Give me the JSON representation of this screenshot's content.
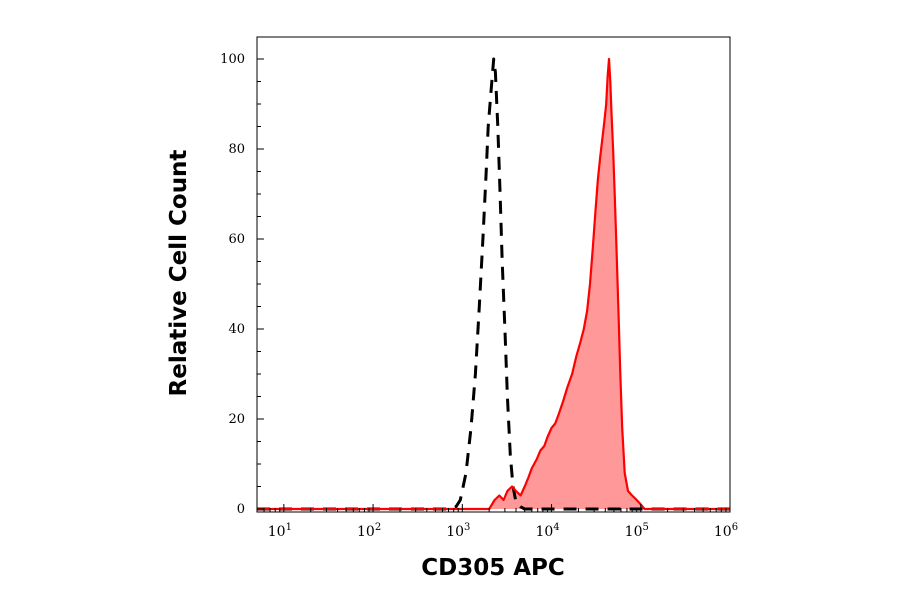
{
  "chart_data": {
    "type": "area",
    "xlabel": "CD305 APC",
    "ylabel": "Relative Cell Count",
    "x_scale": "log",
    "xlim": [
      5,
      1000000
    ],
    "ylim": [
      0,
      100
    ],
    "y_ticks": [
      0,
      20,
      40,
      60,
      80,
      100
    ],
    "x_ticks": [
      {
        "value": 10,
        "base": "10",
        "exp": "1"
      },
      {
        "value": 100,
        "base": "10",
        "exp": "2"
      },
      {
        "value": 1000,
        "base": "10",
        "exp": "3"
      },
      {
        "value": 10000,
        "base": "10",
        "exp": "4"
      },
      {
        "value": 100000,
        "base": "10",
        "exp": "5"
      },
      {
        "value": 1000000,
        "base": "10",
        "exp": "6"
      }
    ],
    "grid": false,
    "series": [
      {
        "style": "dashed",
        "color": "#000000",
        "fill": false,
        "points": [
          [
            5,
            0
          ],
          [
            700,
            0
          ],
          [
            850,
            0.5
          ],
          [
            950,
            2
          ],
          [
            1100,
            8
          ],
          [
            1250,
            18
          ],
          [
            1400,
            30
          ],
          [
            1550,
            45
          ],
          [
            1700,
            60
          ],
          [
            1850,
            75
          ],
          [
            1950,
            85
          ],
          [
            2100,
            93
          ],
          [
            2250,
            100
          ],
          [
            2350,
            97
          ],
          [
            2500,
            85
          ],
          [
            2650,
            70
          ],
          [
            2800,
            55
          ],
          [
            3000,
            40
          ],
          [
            3200,
            25
          ],
          [
            3450,
            12
          ],
          [
            3700,
            5
          ],
          [
            4000,
            1.5
          ],
          [
            4500,
            0.5
          ],
          [
            5000,
            0
          ],
          [
            1000000,
            0
          ]
        ]
      },
      {
        "style": "solid",
        "color": "#ff0000",
        "fill": true,
        "fill_color": "#ff9999",
        "points": [
          [
            5,
            0
          ],
          [
            2000,
            0
          ],
          [
            2300,
            2
          ],
          [
            2600,
            3
          ],
          [
            2900,
            2
          ],
          [
            3200,
            4
          ],
          [
            3600,
            5
          ],
          [
            4000,
            4
          ],
          [
            4500,
            3
          ],
          [
            5000,
            5
          ],
          [
            5500,
            7
          ],
          [
            6000,
            9
          ],
          [
            6800,
            11
          ],
          [
            7500,
            13
          ],
          [
            8300,
            14
          ],
          [
            9000,
            16
          ],
          [
            10000,
            18
          ],
          [
            11000,
            19
          ],
          [
            12000,
            21
          ],
          [
            13500,
            24
          ],
          [
            15000,
            27
          ],
          [
            17000,
            30
          ],
          [
            19000,
            34
          ],
          [
            21000,
            37
          ],
          [
            23000,
            40
          ],
          [
            25000,
            44
          ],
          [
            27000,
            50
          ],
          [
            29000,
            58
          ],
          [
            31000,
            66
          ],
          [
            33000,
            73
          ],
          [
            35000,
            78
          ],
          [
            37000,
            82
          ],
          [
            39000,
            86
          ],
          [
            41000,
            90
          ],
          [
            42500,
            96
          ],
          [
            44000,
            100
          ],
          [
            45500,
            95
          ],
          [
            47000,
            88
          ],
          [
            49000,
            80
          ],
          [
            51000,
            70
          ],
          [
            53000,
            60
          ],
          [
            55000,
            50
          ],
          [
            57000,
            40
          ],
          [
            59000,
            30
          ],
          [
            62000,
            18
          ],
          [
            66000,
            8
          ],
          [
            72000,
            4
          ],
          [
            80000,
            3
          ],
          [
            90000,
            2
          ],
          [
            100000,
            1
          ],
          [
            110000,
            0
          ],
          [
            1000000,
            0
          ]
        ]
      }
    ]
  }
}
